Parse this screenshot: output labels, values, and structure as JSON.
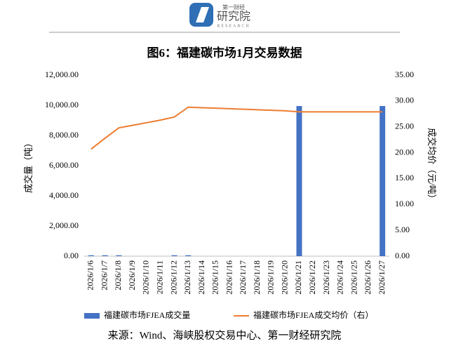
{
  "header": {
    "brand_small": "第一财经",
    "brand": "研究院",
    "brand_en": "RESEARCH"
  },
  "chart_data": {
    "type": "bar",
    "title": "图6：福建碳市场1月交易数据",
    "categories": [
      "2026/1/6",
      "2026/1/7",
      "2026/1/8",
      "2026/1/9",
      "2026/1/10",
      "2026/1/11",
      "2026/1/12",
      "2026/1/13",
      "2026/1/14",
      "2026/1/15",
      "2026/1/16",
      "2026/1/17",
      "2026/1/18",
      "2026/1/19",
      "2026/1/20",
      "2026/1/21",
      "2026/1/22",
      "2026/1/23",
      "2026/1/24",
      "2026/1/25",
      "2026/1/26",
      "2026/1/27"
    ],
    "series": [
      {
        "name": "福建碳市场FJEA成交量",
        "type": "bar",
        "color": "#4472c4",
        "values": [
          60,
          60,
          60,
          0,
          0,
          0,
          60,
          60,
          0,
          0,
          0,
          0,
          0,
          0,
          0,
          9950,
          0,
          0,
          0,
          0,
          0,
          9950
        ]
      },
      {
        "name": "福建碳市场FJEA成交均价（右）",
        "type": "line",
        "color": "#ed7d31",
        "axis": "y2",
        "values": [
          20.7,
          22.8,
          24.8,
          25.3,
          25.8,
          26.3,
          26.9,
          28.8,
          28.7,
          28.6,
          28.5,
          28.4,
          28.3,
          28.2,
          28.1,
          27.9,
          27.9,
          27.9,
          27.9,
          27.9,
          27.9,
          27.9
        ]
      }
    ],
    "ylabel": "成交量（吨）",
    "y2label": "成交均价（元/吨）",
    "ylim": [
      0,
      12000
    ],
    "yticks": [
      {
        "value": 0,
        "label": "0.00"
      },
      {
        "value": 2000,
        "label": "2,000.00"
      },
      {
        "value": 4000,
        "label": "4,000.00"
      },
      {
        "value": 6000,
        "label": "6,000.00"
      },
      {
        "value": 8000,
        "label": "8,000.00"
      },
      {
        "value": 10000,
        "label": "10,000.00"
      },
      {
        "value": 12000,
        "label": "12,000.00"
      }
    ],
    "y2lim": [
      0,
      35
    ],
    "y2ticks": [
      {
        "value": 0,
        "label": "0.00"
      },
      {
        "value": 5,
        "label": "5.00"
      },
      {
        "value": 10,
        "label": "10.00"
      },
      {
        "value": 15,
        "label": "15.00"
      },
      {
        "value": 20,
        "label": "20.00"
      },
      {
        "value": 25,
        "label": "25.00"
      },
      {
        "value": 30,
        "label": "30.00"
      },
      {
        "value": 35,
        "label": "35.00"
      }
    ],
    "grid": false,
    "source": "来源：Wind、海峡股权交易中心、第一财经研究院"
  }
}
